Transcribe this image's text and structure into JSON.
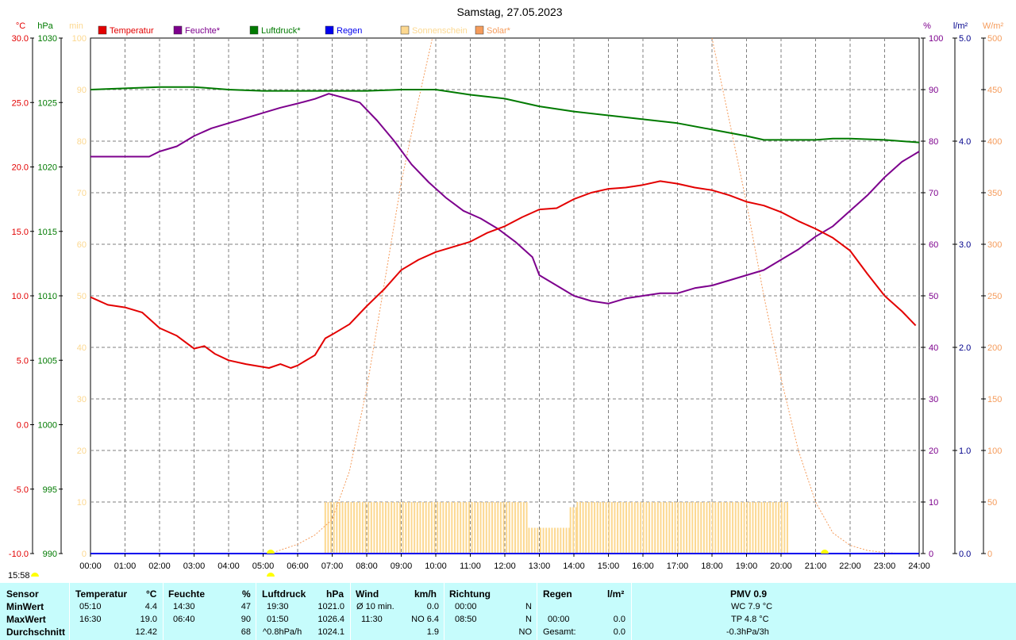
{
  "title": "Samstag, 27.05.2023",
  "current_time": "15:58",
  "colors": {
    "temperature": "#e30000",
    "humidity": "#7d008d",
    "pressure": "#007a00",
    "rain": "#0000ee",
    "sunshine": "#fcd890",
    "solar": "#f59c5c",
    "grid": "#7f7f7f",
    "stats_bg": "#c6fcfc"
  },
  "axes": {
    "temp": {
      "unit": "°C",
      "ticks": [
        "30.0",
        "25.0",
        "20.0",
        "15.0",
        "10.0",
        "5.0",
        "0.0",
        "-5.0",
        "-10.0"
      ]
    },
    "pressure": {
      "unit": "hPa",
      "ticks": [
        "1030",
        "1025",
        "1020",
        "1015",
        "1010",
        "1005",
        "1000",
        "995",
        "990"
      ]
    },
    "sunshine": {
      "unit": "min",
      "ticks": [
        "100",
        "90",
        "80",
        "70",
        "60",
        "50",
        "40",
        "30",
        "20",
        "10",
        "0"
      ]
    },
    "humidity": {
      "unit": "%",
      "ticks": [
        "100",
        "90",
        "80",
        "70",
        "60",
        "50",
        "40",
        "30",
        "20",
        "10",
        "0"
      ]
    },
    "rain": {
      "unit": "l/m²",
      "ticks": [
        "5.0",
        "4.0",
        "3.0",
        "2.0",
        "1.0",
        "0.0"
      ]
    },
    "solar": {
      "unit": "W/m²",
      "ticks": [
        "500",
        "450",
        "400",
        "350",
        "300",
        "250",
        "200",
        "150",
        "100",
        "50",
        "0"
      ]
    },
    "x_ticks": [
      "00:00",
      "01:00",
      "02:00",
      "03:00",
      "04:00",
      "05:00",
      "06:00",
      "07:00",
      "08:00",
      "09:00",
      "10:00",
      "11:00",
      "12:00",
      "13:00",
      "14:00",
      "15:00",
      "16:00",
      "17:00",
      "18:00",
      "19:00",
      "20:00",
      "21:00",
      "22:00",
      "23:00",
      "24:00"
    ]
  },
  "legend": [
    "Temperatur",
    "Feuchte*",
    "Luftdruck*",
    "Regen",
    "Sonnenschein",
    "Solar*"
  ],
  "chart_data": {
    "type": "line",
    "title": "Samstag, 27.05.2023",
    "x_unit": "hour",
    "xlim": [
      0,
      24
    ],
    "grid": true,
    "series": [
      {
        "name": "Temperatur",
        "axis": "°C",
        "ylim": [
          -10,
          30
        ],
        "points": [
          [
            0,
            9.9
          ],
          [
            0.5,
            9.3
          ],
          [
            1,
            9.1
          ],
          [
            1.5,
            8.7
          ],
          [
            2,
            7.5
          ],
          [
            2.5,
            6.9
          ],
          [
            3,
            5.9
          ],
          [
            3.3,
            6.1
          ],
          [
            3.6,
            5.5
          ],
          [
            4,
            5.0
          ],
          [
            4.5,
            4.7
          ],
          [
            5.17,
            4.4
          ],
          [
            5.5,
            4.7
          ],
          [
            5.8,
            4.4
          ],
          [
            6,
            4.6
          ],
          [
            6.5,
            5.4
          ],
          [
            6.8,
            6.7
          ],
          [
            7,
            7.0
          ],
          [
            7.5,
            7.8
          ],
          [
            8,
            9.2
          ],
          [
            8.5,
            10.5
          ],
          [
            9,
            12.0
          ],
          [
            9.5,
            12.8
          ],
          [
            10,
            13.4
          ],
          [
            10.5,
            13.8
          ],
          [
            11,
            14.2
          ],
          [
            11.5,
            14.9
          ],
          [
            12,
            15.4
          ],
          [
            12.5,
            16.1
          ],
          [
            13,
            16.7
          ],
          [
            13.5,
            16.8
          ],
          [
            14,
            17.5
          ],
          [
            14.5,
            18.0
          ],
          [
            15,
            18.3
          ],
          [
            15.5,
            18.4
          ],
          [
            16,
            18.6
          ],
          [
            16.5,
            18.9
          ],
          [
            17,
            18.7
          ],
          [
            17.5,
            18.4
          ],
          [
            18,
            18.2
          ],
          [
            18.5,
            17.8
          ],
          [
            19,
            17.3
          ],
          [
            19.5,
            17.0
          ],
          [
            20,
            16.5
          ],
          [
            20.5,
            15.8
          ],
          [
            21,
            15.2
          ],
          [
            21.5,
            14.5
          ],
          [
            22,
            13.5
          ],
          [
            22.5,
            11.7
          ],
          [
            23,
            10.0
          ],
          [
            23.5,
            8.8
          ],
          [
            23.9,
            7.7
          ]
        ]
      },
      {
        "name": "Feuchte*",
        "axis": "%",
        "ylim": [
          0,
          100
        ],
        "points": [
          [
            0,
            77
          ],
          [
            1,
            77
          ],
          [
            1.7,
            77
          ],
          [
            2,
            78
          ],
          [
            2.5,
            79
          ],
          [
            3,
            81
          ],
          [
            3.5,
            82.5
          ],
          [
            4,
            83.5
          ],
          [
            4.5,
            84.5
          ],
          [
            5,
            85.5
          ],
          [
            5.5,
            86.5
          ],
          [
            6,
            87.3
          ],
          [
            6.5,
            88.2
          ],
          [
            6.9,
            89.2
          ],
          [
            7.3,
            88.5
          ],
          [
            7.8,
            87.5
          ],
          [
            8.3,
            84
          ],
          [
            8.8,
            80
          ],
          [
            9.3,
            75.5
          ],
          [
            9.8,
            72
          ],
          [
            10.3,
            69
          ],
          [
            10.8,
            66.5
          ],
          [
            11.3,
            65
          ],
          [
            11.8,
            63
          ],
          [
            12.3,
            60.5
          ],
          [
            12.8,
            57.5
          ],
          [
            13,
            54
          ],
          [
            13.5,
            52
          ],
          [
            14,
            50
          ],
          [
            14.5,
            49
          ],
          [
            15,
            48.5
          ],
          [
            15.5,
            49.5
          ],
          [
            16,
            50
          ],
          [
            16.5,
            50.5
          ],
          [
            17,
            50.5
          ],
          [
            17.5,
            51.5
          ],
          [
            18,
            52
          ],
          [
            18.5,
            53
          ],
          [
            19,
            54
          ],
          [
            19.5,
            55
          ],
          [
            20,
            57
          ],
          [
            20.5,
            59
          ],
          [
            21,
            61.5
          ],
          [
            21.5,
            63.5
          ],
          [
            22,
            66.5
          ],
          [
            22.5,
            69.5
          ],
          [
            23,
            73
          ],
          [
            23.5,
            76
          ],
          [
            24,
            78
          ]
        ]
      },
      {
        "name": "Luftdruck*",
        "axis": "hPa",
        "ylim": [
          990,
          1030
        ],
        "points": [
          [
            0,
            1026.0
          ],
          [
            1,
            1026.1
          ],
          [
            2,
            1026.2
          ],
          [
            3,
            1026.2
          ],
          [
            4,
            1026.0
          ],
          [
            5,
            1025.9
          ],
          [
            6,
            1025.9
          ],
          [
            7,
            1025.9
          ],
          [
            8,
            1025.9
          ],
          [
            9,
            1026.0
          ],
          [
            10,
            1026.0
          ],
          [
            11,
            1025.6
          ],
          [
            12,
            1025.3
          ],
          [
            13,
            1024.7
          ],
          [
            14,
            1024.3
          ],
          [
            15,
            1024.0
          ],
          [
            16,
            1023.7
          ],
          [
            17,
            1023.4
          ],
          [
            18,
            1022.9
          ],
          [
            19,
            1022.4
          ],
          [
            19.5,
            1022.1
          ],
          [
            20,
            1022.1
          ],
          [
            21,
            1022.1
          ],
          [
            21.5,
            1022.2
          ],
          [
            22,
            1022.2
          ],
          [
            23,
            1022.1
          ],
          [
            24,
            1021.9
          ]
        ]
      },
      {
        "name": "Regen",
        "axis": "l/m²",
        "ylim": [
          0,
          5
        ],
        "points": [
          [
            0,
            0
          ],
          [
            24,
            0
          ]
        ]
      },
      {
        "name": "Sonnenschein",
        "axis": "min",
        "ylim": [
          0,
          100
        ],
        "type": "bar",
        "bins": [
          {
            "from": 6.8,
            "to": 12.7,
            "value": 10
          },
          {
            "from": 12.7,
            "to": 13.9,
            "value": 5
          },
          {
            "from": 13.9,
            "to": 14.1,
            "value": 9
          },
          {
            "from": 14.1,
            "to": 20.2,
            "value": 10
          }
        ]
      },
      {
        "name": "Solar*",
        "axis": "W/m²",
        "ylim": [
          0,
          500
        ],
        "points": [
          [
            5.2,
            0
          ],
          [
            6,
            9
          ],
          [
            6.5,
            18
          ],
          [
            7,
            33
          ],
          [
            7.5,
            80
          ],
          [
            8,
            160
          ],
          [
            8.5,
            260
          ],
          [
            9,
            360
          ],
          [
            9.5,
            440
          ],
          [
            9.9,
            500
          ]
        ],
        "points_evening": [
          [
            18,
            500
          ],
          [
            18.5,
            420
          ],
          [
            19,
            340
          ],
          [
            19.5,
            250
          ],
          [
            20,
            170
          ],
          [
            20.5,
            100
          ],
          [
            21,
            50
          ],
          [
            21.5,
            20
          ],
          [
            22,
            8
          ],
          [
            22.5,
            3
          ],
          [
            23,
            1
          ],
          [
            23.5,
            0
          ]
        ]
      }
    ]
  },
  "stats": {
    "rows": [
      "Sensor",
      "MinWert",
      "MaxWert",
      "Durchschnitt"
    ],
    "temperature": {
      "label": "Temperatur",
      "unit": "°C",
      "min_time": "05:10",
      "min": "4.4",
      "max_time": "16:30",
      "max": "19.0",
      "avg": "12.42"
    },
    "humidity": {
      "label": "Feuchte",
      "unit": "%",
      "min_time": "14:30",
      "min": "47",
      "max_time": "06:40",
      "max": "90",
      "avg": "68"
    },
    "pressure": {
      "label": "Luftdruck",
      "unit": "hPa",
      "min_time": "19:30",
      "min": "1021.0",
      "max_time": "01:50",
      "max": "1026.4",
      "trend": "^0.8hPa/h",
      "avg": "1024.1"
    },
    "wind": {
      "label": "Wind",
      "unit": "km/h",
      "min_label": "Ø 10 min.",
      "min": "0.0",
      "max_time": "11:30",
      "max": "NO 6.4",
      "avg": "1.9"
    },
    "direction": {
      "label": "Richtung",
      "min_time": "00:00",
      "min": "N",
      "max_time": "08:50",
      "max": "N",
      "avg": "NO"
    },
    "rain": {
      "label": "Regen",
      "unit": "l/m²",
      "max_time": "00:00",
      "max": "0.0",
      "total_label": "Gesamt:",
      "total": "0.0"
    },
    "pmv": {
      "label": "PMV 0.9",
      "wc": "WC 7.9 °C",
      "tp": "TP 4.8 °C",
      "trend": "-0.3hPa/3h"
    }
  }
}
